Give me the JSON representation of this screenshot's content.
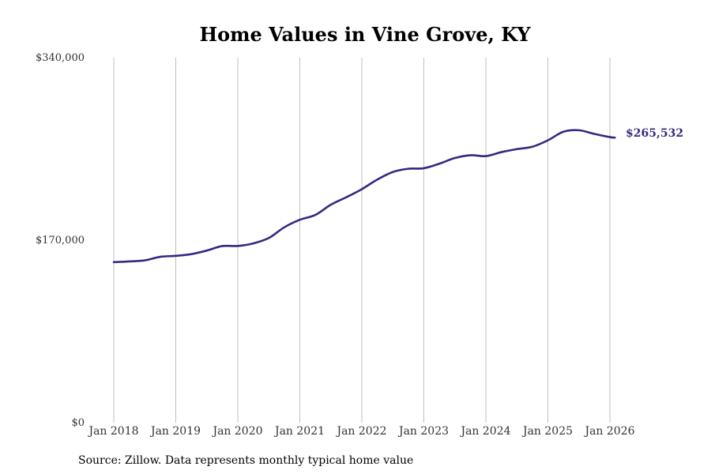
{
  "chart_data": {
    "type": "line",
    "title": "Home Values in Vine Grove, KY",
    "xlabel": "",
    "ylabel": "",
    "ylim": [
      0,
      340000
    ],
    "y_ticks": [
      0,
      170000,
      340000
    ],
    "y_tick_labels": [
      "$0",
      "$170,000",
      "$340,000"
    ],
    "x_ticks": [
      2018,
      2019,
      2020,
      2021,
      2022,
      2023,
      2024,
      2025,
      2026
    ],
    "x_tick_labels": [
      "Jan 2018",
      "Jan 2019",
      "Jan 2020",
      "Jan 2021",
      "Jan 2022",
      "Jan 2023",
      "Jan 2024",
      "Jan 2025",
      "Jan 2026"
    ],
    "grid": "vertical",
    "series": [
      {
        "name": "Typical home value",
        "color": "#35297f",
        "x": [
          2018.0,
          2018.25,
          2018.5,
          2018.75,
          2019.0,
          2019.25,
          2019.5,
          2019.75,
          2020.0,
          2020.25,
          2020.5,
          2020.75,
          2021.0,
          2021.25,
          2021.5,
          2021.75,
          2022.0,
          2022.25,
          2022.5,
          2022.75,
          2023.0,
          2023.25,
          2023.5,
          2023.75,
          2024.0,
          2024.25,
          2024.5,
          2024.75,
          2025.0,
          2025.25,
          2025.5,
          2025.75,
          2026.0,
          2026.08
        ],
        "y": [
          149500,
          150200,
          151200,
          154500,
          155400,
          157000,
          160300,
          164500,
          164600,
          167000,
          172000,
          182000,
          189000,
          193500,
          203000,
          210000,
          217500,
          226500,
          233500,
          236500,
          237000,
          241200,
          246500,
          249100,
          248300,
          252000,
          254800,
          257000,
          263000,
          271000,
          272400,
          269000,
          266000,
          265532
        ]
      }
    ],
    "end_label": "$265,532"
  },
  "footer": {
    "source": "Source: Zillow. Data represents monthly typical home value"
  }
}
